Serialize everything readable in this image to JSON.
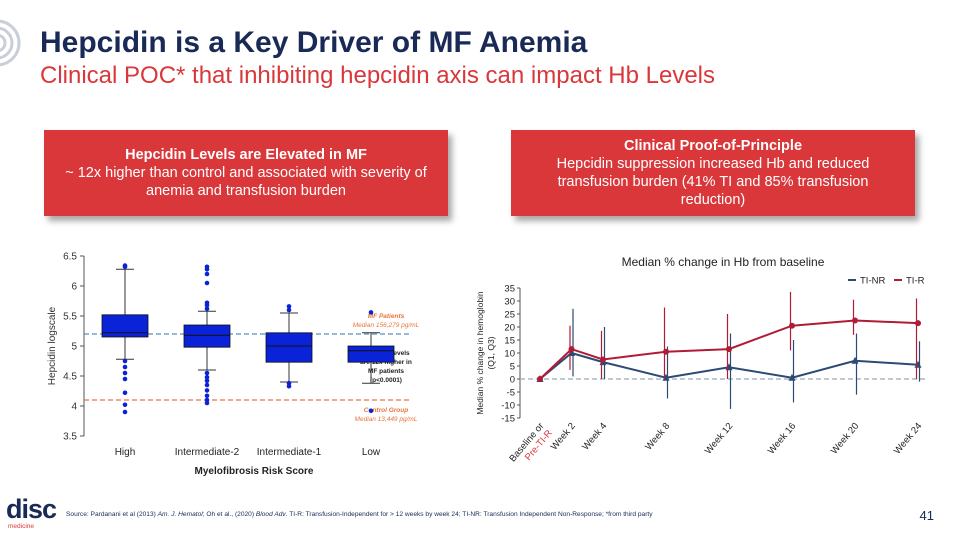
{
  "header": {
    "title": "Hepcidin is a Key Driver of MF Anemia",
    "subtitle": "Clinical POC* that inhibiting hepcidin axis can impact Hb Levels"
  },
  "callouts": {
    "left": {
      "head": "Hepcidin Levels are Elevated in MF",
      "body": "~ 12x higher than control and associated with severity of anemia and transfusion burden"
    },
    "right": {
      "head": "Clinical Proof-of-Principle",
      "body": "Hepcidin suppression increased Hb and reduced transfusion burden (41% TI and 85% transfusion reduction)"
    }
  },
  "chart_data": [
    {
      "type": "box",
      "title": "",
      "xlabel": "Myelofibrosis Risk Score",
      "ylabel": "Hepcidin logscale",
      "ylim": [
        3.5,
        6.5
      ],
      "yticks": [
        "3.5",
        "4",
        "4.5",
        "5",
        "5.5",
        "6",
        "6.5"
      ],
      "categories": [
        "High",
        "Intermediate-2",
        "Intermediate-1",
        "Low"
      ],
      "boxes": [
        {
          "whisker_low": 4.78,
          "q1": 5.15,
          "median": 5.22,
          "q3": 5.52,
          "whisker_high": 6.28,
          "outliers": [
            6.34,
            6.32,
            4.75,
            4.65,
            4.55,
            4.45,
            4.22,
            4.02,
            3.9
          ]
        },
        {
          "whisker_low": 4.6,
          "q1": 4.98,
          "median": 5.18,
          "q3": 5.35,
          "whisker_high": 5.58,
          "outliers": [
            6.32,
            6.28,
            6.2,
            6.05,
            5.72,
            5.68,
            5.62,
            4.55,
            4.48,
            4.42,
            4.35,
            4.26,
            4.17,
            4.1,
            4.05
          ]
        },
        {
          "whisker_low": 4.4,
          "q1": 4.73,
          "median": 5.0,
          "q3": 5.22,
          "whisker_high": 5.55,
          "outliers": [
            5.66,
            5.6,
            4.38,
            4.33
          ]
        },
        {
          "whisker_low": 4.38,
          "q1": 4.73,
          "median": 4.92,
          "q3": 5.0,
          "whisker_high": 5.22,
          "outliers": [
            5.56,
            3.92
          ]
        }
      ],
      "reference_lines": [
        {
          "value": 5.2,
          "label1": "MF Patients",
          "label2": "Median 156,279 pg/mL",
          "color": "#5b8fc9"
        },
        {
          "value": 4.1,
          "label1": "Control Group",
          "label2": "Median 13,449 pg/mL",
          "color": "#e8763a"
        }
      ],
      "annotation": [
        "Hepcidin levels",
        "are 12x higher in",
        "MF patients",
        "(p<0.0001)"
      ],
      "box_color": "#0a22d8",
      "point_color": "#0a22d8"
    },
    {
      "type": "line",
      "title": "Median % change in Hb from baseline",
      "xlabel": "",
      "ylabel": [
        "Median % change in hemoglobin",
        "(Q1, Q3)"
      ],
      "ylim": [
        -15,
        35
      ],
      "yticks": [
        "35",
        "30",
        "25",
        "20",
        "15",
        "10",
        "5",
        "0",
        "-5",
        "-10",
        "-15"
      ],
      "x": [
        "Baseline or",
        "Week 2",
        "Week 4",
        "Week 8",
        "Week 12",
        "Week 16",
        "Week 20",
        "Week 24"
      ],
      "x_extra": "Pre-TI-R",
      "x_positions": [
        0,
        2,
        4,
        8,
        12,
        16,
        20,
        24
      ],
      "legend_position": "top-right",
      "series": [
        {
          "name": "TI-NR",
          "color": "#2b4a75",
          "values": [
            0,
            10,
            6.5,
            0.5,
            4.5,
            0.5,
            7,
            5.5
          ],
          "q1": [
            0,
            1,
            0,
            -7.5,
            -11.5,
            -9,
            -6,
            -1
          ],
          "q3": [
            0,
            27,
            20,
            12.5,
            17.5,
            15,
            17.5,
            14.5
          ]
        },
        {
          "name": "TI-R",
          "color": "#b01c36",
          "values": [
            0,
            11.5,
            7.5,
            10.5,
            11.5,
            20.5,
            22.5,
            21.5
          ],
          "q1": [
            0,
            3.5,
            0,
            0,
            0,
            11,
            17,
            0
          ],
          "q3": [
            0,
            20.5,
            18.5,
            27.5,
            25,
            33.5,
            30.5,
            31
          ]
        }
      ],
      "reference_line": 0
    }
  ],
  "footer": {
    "logo_word": "disc",
    "logo_sub": "medicine",
    "source_parts": [
      {
        "text": "Source: Pardanani et al (2013) ",
        "italic": false
      },
      {
        "text": "Am. J. Hematol",
        "italic": true
      },
      {
        "text": "; Oh et al., (2020) ",
        "italic": false
      },
      {
        "text": "Blood Adv",
        "italic": true
      },
      {
        "text": ". TI-R: Transfusion-Independent for > 12 weeks by week 24; TI-NR: Transfusion Independent Non-Response; *from third party",
        "italic": false
      }
    ],
    "page_number": "41"
  },
  "colors": {
    "navy": "#1a2a57",
    "red": "#d9373a"
  }
}
